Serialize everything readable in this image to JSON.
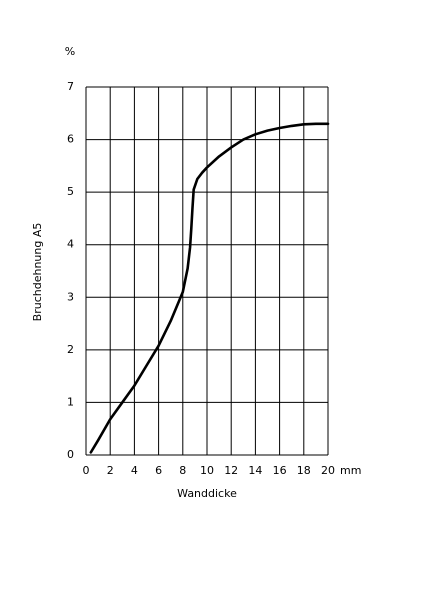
{
  "chart_data": {
    "type": "line",
    "y_label": "Bruchdehnung A5",
    "x_label": "Wanddicke",
    "y_unit": "%",
    "x_unit": "mm",
    "x": [
      0.4,
      1,
      2,
      3,
      4,
      5,
      6,
      7,
      8,
      8.4,
      8.6,
      8.7,
      8.8,
      8.9,
      9.2,
      9.6,
      10,
      11,
      12,
      13,
      14,
      15,
      16,
      17,
      18,
      19,
      20
    ],
    "series": [
      {
        "color": "#000000",
        "values": [
          0.05,
          0.28,
          0.68,
          1.0,
          1.32,
          1.7,
          2.08,
          2.55,
          3.1,
          3.55,
          3.95,
          4.3,
          4.7,
          5.05,
          5.25,
          5.37,
          5.47,
          5.68,
          5.85,
          6.0,
          6.1,
          6.17,
          6.22,
          6.26,
          6.29,
          6.3,
          6.3
        ]
      }
    ],
    "xlim": [
      0,
      20
    ],
    "ylim": [
      0,
      7
    ],
    "xticks": [
      0,
      2,
      4,
      6,
      8,
      10,
      12,
      14,
      16,
      18,
      20
    ],
    "yticks": [
      0,
      1,
      2,
      3,
      4,
      5,
      6,
      7
    ],
    "grid": true
  }
}
